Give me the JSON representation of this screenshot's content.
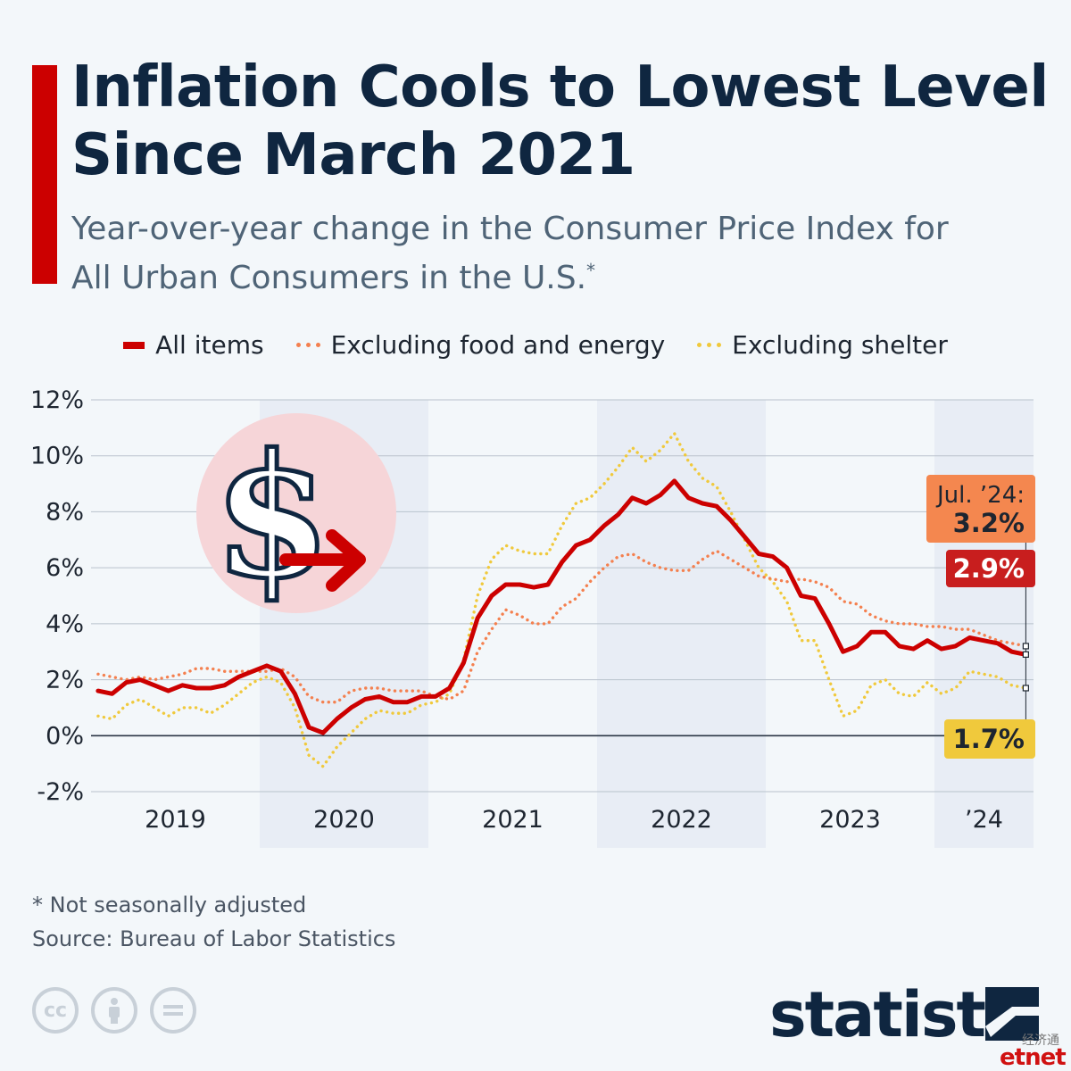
{
  "header": {
    "title": "Inflation Cools to Lowest Level Since March 2021",
    "subtitle": "Year-over-year change in the Consumer Price Index for All Urban Consumers in the U.S.",
    "subtitle_marker": "*"
  },
  "legend": [
    {
      "label": "All items",
      "style": "solid",
      "color": "#cc0000"
    },
    {
      "label": "Excluding food and energy",
      "style": "dotted",
      "color": "#f4804f"
    },
    {
      "label": "Excluding shelter",
      "style": "dotted",
      "color": "#f0c93c"
    }
  ],
  "callouts": {
    "core_date": "Jul. ’24:",
    "core_value": "3.2%",
    "all_value": "2.9%",
    "shelter_value": "1.7%"
  },
  "footer": {
    "footnote": "* Not seasonally adjusted",
    "source": "Source: Bureau of Labor Statistics",
    "license_icons": [
      "cc-icon",
      "attribution-icon",
      "no-derivatives-icon"
    ],
    "brand": "statista",
    "watermark_cn": "经济通",
    "watermark": "etnet"
  },
  "colors": {
    "accent": "#cc0000",
    "title": "#0f2640",
    "core": "#f4804f",
    "shelter": "#f0c93c",
    "band": "#e8edf5"
  },
  "chart_data": {
    "type": "line",
    "x_start": "2019-01",
    "x_end": "2024-07",
    "ylim": [
      -2,
      12
    ],
    "yticks": [
      -2,
      0,
      2,
      4,
      6,
      8,
      10,
      12
    ],
    "ytick_labels": [
      "-2%",
      "0%",
      "2%",
      "4%",
      "6%",
      "8%",
      "10%",
      "12%"
    ],
    "year_labels": [
      "2019",
      "2020",
      "2021",
      "2022",
      "2023",
      "’24"
    ],
    "shaded_years": [
      "2020",
      "2022",
      "’24"
    ],
    "grid": true,
    "legend_position": "top",
    "series": [
      {
        "name": "All items",
        "color": "#cc0000",
        "style": "solid",
        "values": [
          1.6,
          1.5,
          1.9,
          2.0,
          1.8,
          1.6,
          1.8,
          1.7,
          1.7,
          1.8,
          2.1,
          2.3,
          2.5,
          2.3,
          1.5,
          0.3,
          0.1,
          0.6,
          1.0,
          1.3,
          1.4,
          1.2,
          1.2,
          1.4,
          1.4,
          1.7,
          2.6,
          4.2,
          5.0,
          5.4,
          5.4,
          5.3,
          5.4,
          6.2,
          6.8,
          7.0,
          7.5,
          7.9,
          8.5,
          8.3,
          8.6,
          9.1,
          8.5,
          8.3,
          8.2,
          7.7,
          7.1,
          6.5,
          6.4,
          6.0,
          5.0,
          4.9,
          4.0,
          3.0,
          3.2,
          3.7,
          3.7,
          3.2,
          3.1,
          3.4,
          3.1,
          3.2,
          3.5,
          3.4,
          3.3,
          3.0,
          2.9
        ]
      },
      {
        "name": "Excluding food and energy",
        "color": "#f4804f",
        "style": "dotted",
        "values": [
          2.2,
          2.1,
          2.0,
          2.1,
          2.0,
          2.1,
          2.2,
          2.4,
          2.4,
          2.3,
          2.3,
          2.3,
          2.3,
          2.4,
          2.1,
          1.4,
          1.2,
          1.2,
          1.6,
          1.7,
          1.7,
          1.6,
          1.6,
          1.6,
          1.4,
          1.3,
          1.6,
          3.0,
          3.8,
          4.5,
          4.3,
          4.0,
          4.0,
          4.6,
          4.9,
          5.5,
          6.0,
          6.4,
          6.5,
          6.2,
          6.0,
          5.9,
          5.9,
          6.3,
          6.6,
          6.3,
          6.0,
          5.7,
          5.6,
          5.5,
          5.6,
          5.5,
          5.3,
          4.8,
          4.7,
          4.3,
          4.1,
          4.0,
          4.0,
          3.9,
          3.9,
          3.8,
          3.8,
          3.6,
          3.4,
          3.3,
          3.2
        ]
      },
      {
        "name": "Excluding shelter",
        "color": "#f0c93c",
        "style": "dotted",
        "values": [
          0.7,
          0.6,
          1.1,
          1.3,
          1.0,
          0.7,
          1.0,
          1.0,
          0.8,
          1.1,
          1.5,
          1.9,
          2.1,
          1.9,
          1.0,
          -0.7,
          -1.1,
          -0.4,
          0.1,
          0.6,
          0.9,
          0.8,
          0.8,
          1.1,
          1.2,
          1.5,
          2.7,
          5.0,
          6.3,
          6.8,
          6.6,
          6.5,
          6.5,
          7.5,
          8.3,
          8.5,
          9.0,
          9.6,
          10.3,
          9.8,
          10.2,
          10.8,
          9.8,
          9.2,
          8.9,
          8.0,
          7.0,
          6.0,
          5.5,
          4.8,
          3.4,
          3.4,
          2.0,
          0.7,
          0.9,
          1.8,
          2.0,
          1.5,
          1.4,
          1.9,
          1.5,
          1.7,
          2.3,
          2.2,
          2.1,
          1.8,
          1.7
        ]
      }
    ]
  }
}
